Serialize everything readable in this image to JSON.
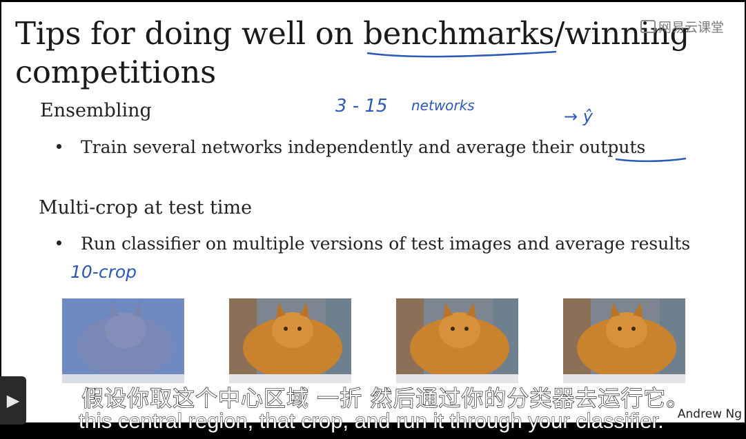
{
  "slide": {
    "title_line1": "Tips for doing well on benchmarks/winning",
    "title_line2": "competitions",
    "logo_text": "网易云课堂",
    "section1_heading": "Ensembling",
    "section1_bullet": "Train several networks independently and average their outputs",
    "section2_heading": "Multi-crop at test time",
    "section2_bullet": "Run classifier on multiple versions of test images and average results",
    "credit": "Andrew Ng"
  },
  "annotations": {
    "networks_range": "3 - 15",
    "networks_word": "networks",
    "y_hat": "→ ŷ",
    "crop_note": "10-crop"
  },
  "subtitles": {
    "chinese": "假设你取这个中心区域 一折 然后通过你的分类器去运行它。",
    "english": "this central region, that crop, and run it through your classifier."
  },
  "colors": {
    "ink_annotation": "#2c58b7",
    "highlight_overlay": "#5a7fd6"
  },
  "icons": {
    "play": "play-icon"
  }
}
